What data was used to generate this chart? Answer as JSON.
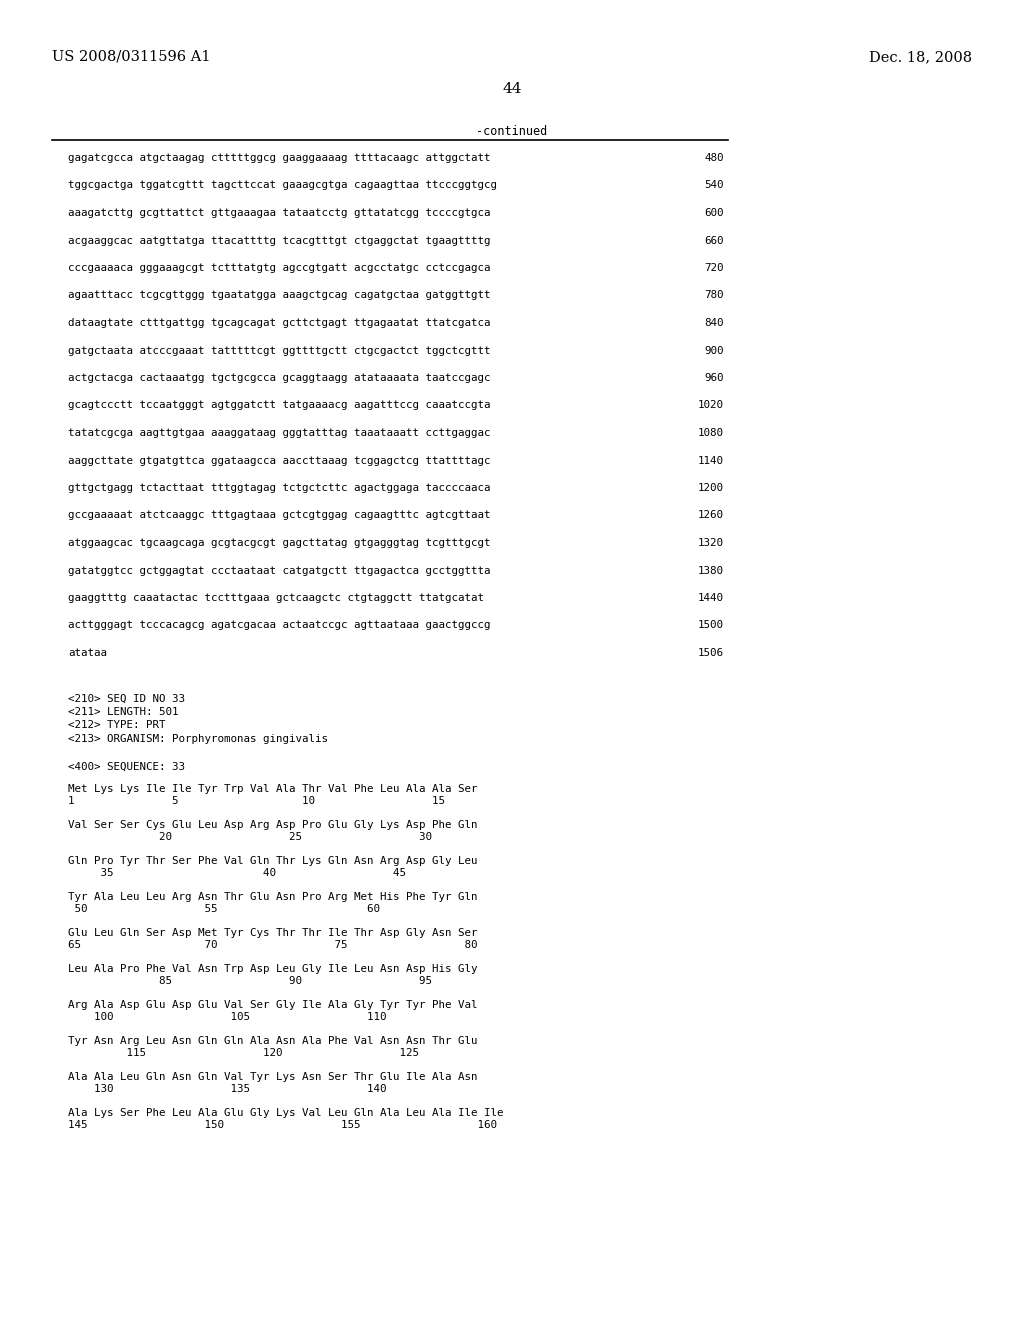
{
  "header_left": "US 2008/0311596 A1",
  "header_right": "Dec. 18, 2008",
  "page_number": "44",
  "continued_label": "-continued",
  "background_color": "#ffffff",
  "sequence_lines": [
    [
      "gagatcgcca atgctaagag ctttttggcg gaaggaaaag ttttacaagc attggctatt",
      "480"
    ],
    [
      "tggcgactga tggatcgttt tagcttccat gaaagcgtga cagaagttaa ttcccggtgcg",
      "540"
    ],
    [
      "aaagatcttg gcgttattct gttgaaagaa tataatcctg gttatatcgg tccccgtgca",
      "600"
    ],
    [
      "acgaaggcac aatgttatga ttacattttg tcacgtttgt ctgaggctat tgaagttttg",
      "660"
    ],
    [
      "cccgaaaaca gggaaagcgt tctttatgtg agccgtgatt acgcctatgc cctccgagca",
      "720"
    ],
    [
      "agaatttacc tcgcgttggg tgaatatgga aaagctgcag cagatgctaa gatggttgtt",
      "780"
    ],
    [
      "dataagtate ctttgattgg tgcagcagat gcttctgagt ttgagaatat ttatcgatca",
      "840"
    ],
    [
      "gatgctaata atcccgaaat tatttttcgt ggttttgctt ctgcgactct tggctcgttt",
      "900"
    ],
    [
      "actgctacga cactaaatgg tgctgcgcca gcaggtaagg atataaaata taatccgagc",
      "960"
    ],
    [
      "gcagtccctt tccaatgggt agtggatctt tatgaaaacg aagatttccg caaatccgta",
      "1020"
    ],
    [
      "tatatcgcga aagttgtgaa aaaggataag gggtatttag taaataaatt ccttgaggac",
      "1080"
    ],
    [
      "aaggcttate gtgatgttca ggataagcca aaccttaaag tcggagctcg ttattttagc",
      "1140"
    ],
    [
      "gttgctgagg tctacttaat tttggtagag tctgctcttc agactggaga taccccaaca",
      "1200"
    ],
    [
      "gccgaaaaat atctcaaggc tttgagtaaa gctcgtggag cagaagtttc agtcgttaat",
      "1260"
    ],
    [
      "atggaagcac tgcaagcaga gcgtacgcgt gagcttatag gtgagggtag tcgtttgcgt",
      "1320"
    ],
    [
      "gatatggtcc gctggagtat ccctaataat catgatgctt ttgagactca gcctggttta",
      "1380"
    ],
    [
      "gaaggtttg caaatactac tcctttgaaa gctcaagctc ctgtaggctt ttatgcatat",
      "1440"
    ],
    [
      "acttgggagt tcccacagcg agatcgacaa actaatccgc agttaataaa gaactggccg",
      "1500"
    ],
    [
      "atataa",
      "1506"
    ]
  ],
  "metadata_lines": [
    "<210> SEQ ID NO 33",
    "<211> LENGTH: 501",
    "<212> TYPE: PRT",
    "<213> ORGANISM: Porphyromonas gingivalis"
  ],
  "sequence_label": "<400> SEQUENCE: 33",
  "protein_blocks": [
    {
      "seq": "Met Lys Lys Ile Ile Tyr Trp Val Ala Thr Val Phe Leu Ala Ala Ser",
      "num": "1               5                   10                  15"
    },
    {
      "seq": "Val Ser Ser Cys Glu Leu Asp Arg Asp Pro Glu Gly Lys Asp Phe Gln",
      "num": "              20                  25                  30"
    },
    {
      "seq": "Gln Pro Tyr Thr Ser Phe Val Gln Thr Lys Gln Asn Arg Asp Gly Leu",
      "num": "     35                       40                  45"
    },
    {
      "seq": "Tyr Ala Leu Leu Arg Asn Thr Glu Asn Pro Arg Met His Phe Tyr Gln",
      "num": " 50                  55                       60"
    },
    {
      "seq": "Glu Leu Gln Ser Asp Met Tyr Cys Thr Thr Ile Thr Asp Gly Asn Ser",
      "num": "65                   70                  75                  80"
    },
    {
      "seq": "Leu Ala Pro Phe Val Asn Trp Asp Leu Gly Ile Leu Asn Asp His Gly",
      "num": "              85                  90                  95"
    },
    {
      "seq": "Arg Ala Asp Glu Asp Glu Val Ser Gly Ile Ala Gly Tyr Tyr Phe Val",
      "num": "    100                  105                  110"
    },
    {
      "seq": "Tyr Asn Arg Leu Asn Gln Gln Ala Asn Ala Phe Val Asn Asn Thr Glu",
      "num": "         115                  120                  125"
    },
    {
      "seq": "Ala Ala Leu Gln Asn Gln Val Tyr Lys Asn Ser Thr Glu Ile Ala Asn",
      "num": "    130                  135                  140"
    },
    {
      "seq": "Ala Lys Ser Phe Leu Ala Glu Gly Lys Val Leu Gln Ala Leu Ala Ile Ile",
      "num": "145                  150                  155                  160"
    }
  ]
}
